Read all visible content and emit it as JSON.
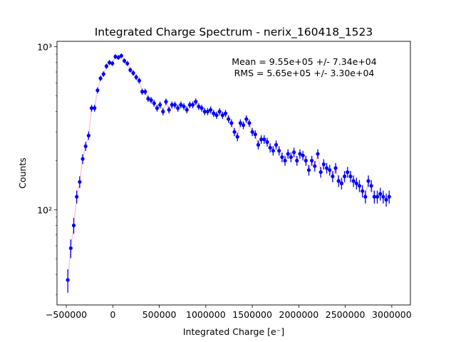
{
  "chart_data": {
    "type": "scatter",
    "title": "Integrated Charge Spectrum - nerix_160418_1523",
    "xlabel": "Integrated Charge [e⁻]",
    "ylabel": "Counts",
    "x_scale": "linear",
    "y_scale": "log",
    "xlim": [
      -600000,
      3200000
    ],
    "ylim": [
      26,
      1080
    ],
    "x_ticks": [
      -500000,
      0,
      500000,
      1000000,
      1500000,
      2000000,
      2500000,
      3000000
    ],
    "x_tick_labels": [
      "−500000",
      "0",
      "500000",
      "1000000",
      "1500000",
      "2000000",
      "2500000",
      "3000000"
    ],
    "y_ticks": [
      100,
      1000
    ],
    "y_tick_labels": [
      "10²",
      "10³"
    ],
    "grid": false,
    "stats": {
      "mean": "Mean = 9.55e+05 +/- 7.34e+04",
      "rms": "RMS = 5.65e+05 +/- 3.30e+04"
    },
    "series": [
      {
        "marker_color": "#0000ff",
        "fit_color": "#ffc0cb",
        "points": [
          [
            -484000,
            37
          ],
          [
            -452000,
            58
          ],
          [
            -420000,
            80
          ],
          [
            -388000,
            120
          ],
          [
            -356000,
            148
          ],
          [
            -324000,
            205
          ],
          [
            -292000,
            245
          ],
          [
            -260000,
            285
          ],
          [
            -228000,
            420
          ],
          [
            -196000,
            420
          ],
          [
            -164000,
            540
          ],
          [
            -132000,
            640
          ],
          [
            -100000,
            680
          ],
          [
            -68000,
            760
          ],
          [
            -36000,
            800
          ],
          [
            -4000,
            790
          ],
          [
            28000,
            870
          ],
          [
            60000,
            860
          ],
          [
            92000,
            880
          ],
          [
            124000,
            820
          ],
          [
            156000,
            790
          ],
          [
            188000,
            720
          ],
          [
            220000,
            690
          ],
          [
            252000,
            650
          ],
          [
            284000,
            620
          ],
          [
            316000,
            530
          ],
          [
            348000,
            530
          ],
          [
            380000,
            480
          ],
          [
            412000,
            470
          ],
          [
            444000,
            450
          ],
          [
            476000,
            420
          ],
          [
            508000,
            440
          ],
          [
            540000,
            400
          ],
          [
            572000,
            460
          ],
          [
            604000,
            410
          ],
          [
            636000,
            440
          ],
          [
            668000,
            440
          ],
          [
            700000,
            420
          ],
          [
            732000,
            440
          ],
          [
            764000,
            430
          ],
          [
            796000,
            410
          ],
          [
            828000,
            440
          ],
          [
            860000,
            440
          ],
          [
            892000,
            460
          ],
          [
            924000,
            430
          ],
          [
            956000,
            420
          ],
          [
            988000,
            400
          ],
          [
            1020000,
            400
          ],
          [
            1052000,
            410
          ],
          [
            1084000,
            390
          ],
          [
            1116000,
            380
          ],
          [
            1148000,
            400
          ],
          [
            1180000,
            380
          ],
          [
            1212000,
            390
          ],
          [
            1244000,
            360
          ],
          [
            1276000,
            340
          ],
          [
            1308000,
            300
          ],
          [
            1340000,
            280
          ],
          [
            1372000,
            340
          ],
          [
            1404000,
            330
          ],
          [
            1436000,
            360
          ],
          [
            1468000,
            340
          ],
          [
            1500000,
            300
          ],
          [
            1532000,
            290
          ],
          [
            1564000,
            250
          ],
          [
            1596000,
            270
          ],
          [
            1628000,
            270
          ],
          [
            1660000,
            260
          ],
          [
            1692000,
            240
          ],
          [
            1724000,
            230
          ],
          [
            1756000,
            250
          ],
          [
            1788000,
            230
          ],
          [
            1820000,
            210
          ],
          [
            1852000,
            200
          ],
          [
            1884000,
            220
          ],
          [
            1916000,
            210
          ],
          [
            1948000,
            225
          ],
          [
            1980000,
            200
          ],
          [
            2012000,
            220
          ],
          [
            2044000,
            215
          ],
          [
            2076000,
            200
          ],
          [
            2108000,
            175
          ],
          [
            2140000,
            200
          ],
          [
            2172000,
            185
          ],
          [
            2204000,
            220
          ],
          [
            2236000,
            170
          ],
          [
            2268000,
            190
          ],
          [
            2300000,
            180
          ],
          [
            2332000,
            175
          ],
          [
            2364000,
            160
          ],
          [
            2396000,
            180
          ],
          [
            2428000,
            150
          ],
          [
            2460000,
            145
          ],
          [
            2492000,
            160
          ],
          [
            2524000,
            170
          ],
          [
            2556000,
            160
          ],
          [
            2588000,
            150
          ],
          [
            2620000,
            145
          ],
          [
            2652000,
            140
          ],
          [
            2684000,
            130
          ],
          [
            2716000,
            120
          ],
          [
            2748000,
            150
          ],
          [
            2780000,
            140
          ],
          [
            2812000,
            120
          ],
          [
            2844000,
            120
          ],
          [
            2876000,
            125
          ],
          [
            2908000,
            120
          ],
          [
            2940000,
            115
          ],
          [
            2972000,
            120
          ]
        ]
      }
    ]
  }
}
